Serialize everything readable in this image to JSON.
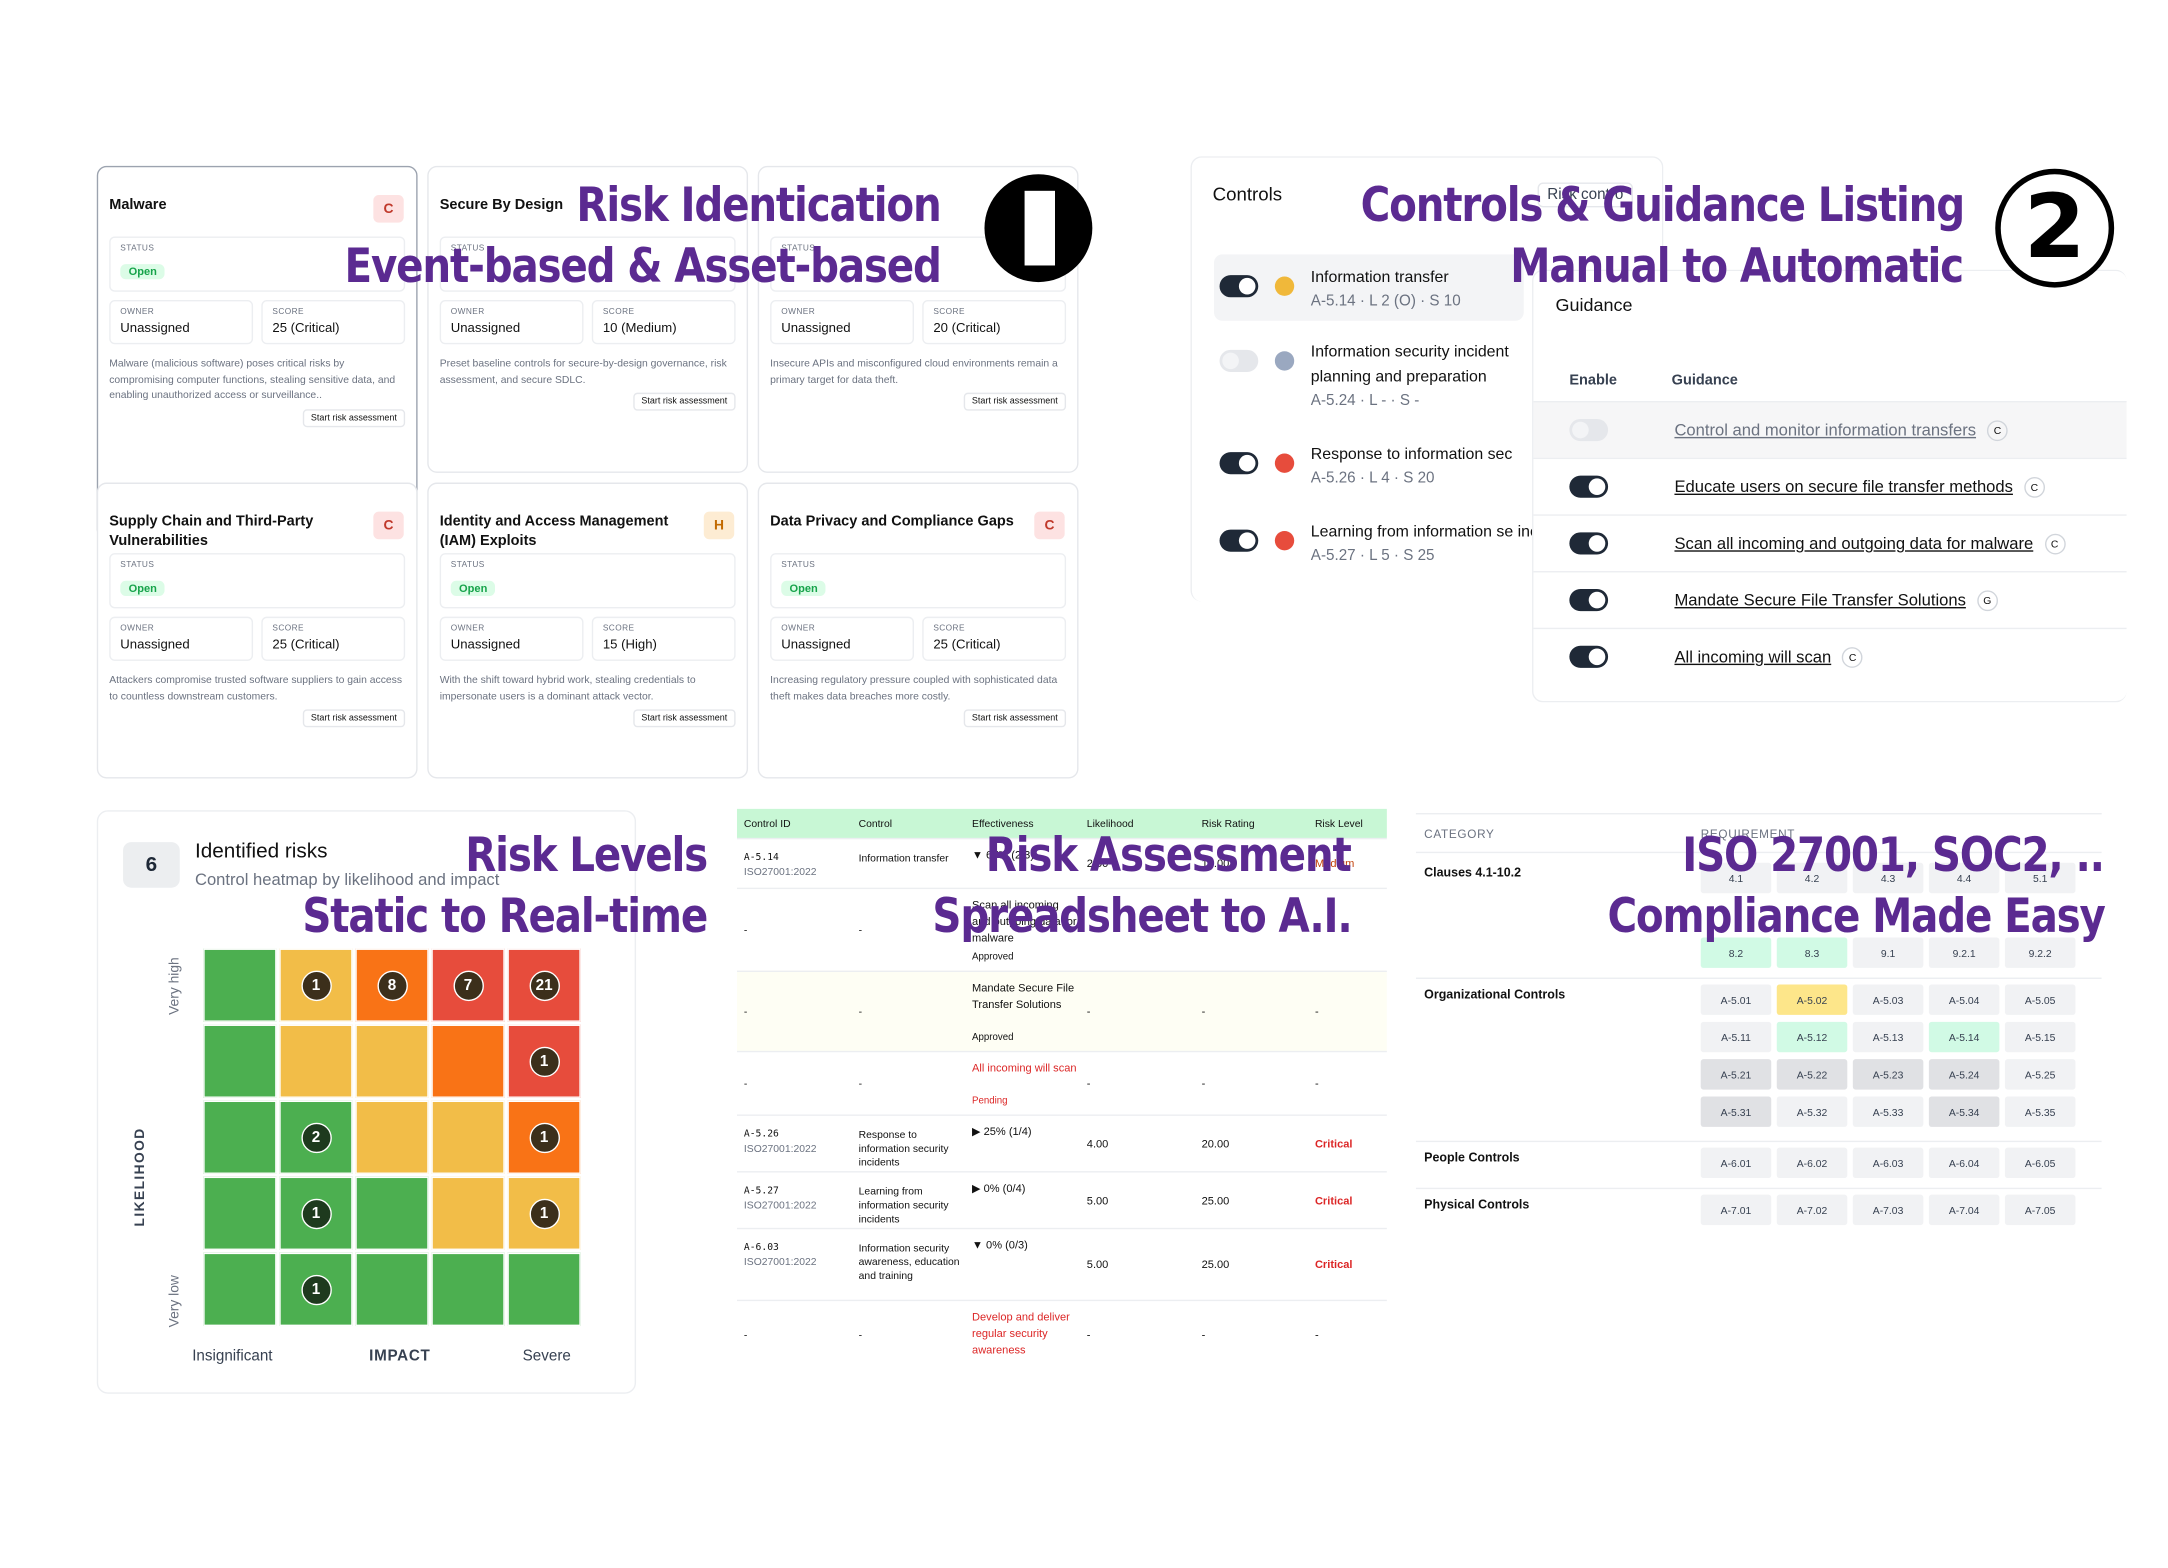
{
  "overlays": {
    "o1a": "Risk Identication",
    "o1b": "Event-based & Asset-based",
    "n1": "1",
    "o2a": "Controls & Guidance Listing",
    "o2b": "Manual to Automatic",
    "n2": "2",
    "o3a": "Risk Levels",
    "o3b": "Static to Real-time",
    "o4a": "Risk Assessment",
    "o4b": "Spreadsheet to A.I.",
    "o5a": "ISO 27001, SOC2, ..",
    "o5b": "Compliance Made Easy"
  },
  "cards": [
    {
      "title": "Malware",
      "badge": "C",
      "status": "Open",
      "owner": "Unassigned",
      "score": "25 (Critical)",
      "desc": "Malware (malicious software) poses critical risks by compromising computer functions, stealing sensitive data, and enabling unauthorized access or surveillance..",
      "btn": "Start risk assessment"
    },
    {
      "title": "Secure By Design",
      "badge": "",
      "status": "",
      "owner": "Unassigned",
      "score": "10 (Medium)",
      "desc": "Preset baseline controls for secure-by-design governance, risk assessment, and secure SDLC.",
      "btn": "Start risk assessment"
    },
    {
      "title": "",
      "badge": "",
      "status": "",
      "owner": "Unassigned",
      "score": "20 (Critical)",
      "desc": "Insecure APIs and misconfigured cloud environments remain a primary target for data theft.",
      "btn": "Start risk assessment"
    },
    {
      "title": "Supply Chain and Third-Party Vulnerabilities",
      "badge": "C",
      "status": "Open",
      "owner": "Unassigned",
      "score": "25 (Critical)",
      "desc": "Attackers compromise trusted software suppliers to gain access to countless downstream customers.",
      "btn": "Start risk assessment"
    },
    {
      "title": "Identity and Access Management (IAM) Exploits",
      "badge": "H",
      "status": "Open",
      "owner": "Unassigned",
      "score": "15 (High)",
      "desc": "With the shift toward hybrid work, stealing credentials to impersonate users is a dominant attack vector.",
      "btn": "Start risk assessment"
    },
    {
      "title": "Data Privacy and Compliance Gaps",
      "badge": "C",
      "status": "Open",
      "owner": "Unassigned",
      "score": "25 (Critical)",
      "desc": "Increasing regulatory pressure coupled with sophisticated data theft makes data breaches more costly.",
      "btn": "Start risk assessment"
    }
  ],
  "labels": {
    "status": "STATUS",
    "owner": "OWNER",
    "score": "SCORE"
  },
  "controls": {
    "title": "Controls",
    "risk_tab": "Risk contro",
    "items": [
      {
        "name": "Information transfer",
        "meta": "A-5.14 · L 2 (O) · S 10",
        "color": "#f0b83a",
        "on": true
      },
      {
        "name": "Information security incident planning and preparation",
        "meta": "A-5.24 · L - · S -",
        "color": "#9aa8c0",
        "on": false
      },
      {
        "name": "Response to information sec",
        "meta": "A-5.26 · L 4 · S 20",
        "color": "#e74c3c",
        "on": true
      },
      {
        "name": "Learning from information se incidents",
        "meta": "A-5.27 · L 5 · S 25",
        "color": "#e74c3c",
        "on": true
      }
    ]
  },
  "guidance": {
    "title": "Guidance",
    "col_enable": "Enable",
    "col_guidance": "Guidance",
    "items": [
      {
        "text": "Control and monitor information transfers",
        "tag": "C",
        "on": false
      },
      {
        "text": "Educate users on secure file transfer methods",
        "tag": "C",
        "on": true
      },
      {
        "text": "Scan all incoming and outgoing data for malware",
        "tag": "C",
        "on": true
      },
      {
        "text": "Mandate Secure File Transfer Solutions",
        "tag": "G",
        "on": true
      },
      {
        "text": "All incoming will scan",
        "tag": "C",
        "on": true
      }
    ]
  },
  "heatmap": {
    "count": "6",
    "title": "Identified risks",
    "subtitle": "Control heatmap by likelihood and impact",
    "y_axis": "LIKELIHOOD",
    "y_top": "Very high",
    "y_bottom": "Very low",
    "x_axis": "IMPACT",
    "x_left": "Insignificant",
    "x_right": "Severe",
    "colors": [
      [
        "#4caf50",
        "#f2bd48",
        "#f97316",
        "#e74c3c",
        "#e74c3c"
      ],
      [
        "#4caf50",
        "#f2bd48",
        "#f2bd48",
        "#f97316",
        "#e74c3c"
      ],
      [
        "#4caf50",
        "#4caf50",
        "#f2bd48",
        "#f2bd48",
        "#f97316"
      ],
      [
        "#4caf50",
        "#4caf50",
        "#4caf50",
        "#f2bd48",
        "#f2bd48"
      ],
      [
        "#4caf50",
        "#4caf50",
        "#4caf50",
        "#4caf50",
        "#4caf50"
      ]
    ],
    "counts": [
      [
        "",
        "1",
        "8",
        "7",
        "21"
      ],
      [
        "",
        "",
        "",
        "",
        "1"
      ],
      [
        "",
        "2",
        "",
        "",
        "1"
      ],
      [
        "",
        "1",
        "",
        "",
        "1"
      ],
      [
        "",
        "1",
        "",
        "",
        ""
      ]
    ]
  },
  "sheet": {
    "headers": [
      "Control ID",
      "Control",
      "Effectiveness",
      "Likelihood",
      "Risk Rating",
      "Risk Level"
    ],
    "rows": [
      {
        "id": "A-5.14",
        "std": "ISO27001:2022",
        "control": "Information transfer",
        "eff": "▼ 67% (2/3)",
        "lik": "2.00",
        "rating": "10.00",
        "level": "Medium",
        "h": 36
      },
      {
        "id": "-",
        "std": "",
        "control": "-",
        "eff": "Scan all incoming and outgoing data for malware",
        "status": "Approved",
        "lik": "",
        "rating": "",
        "level": "",
        "h": 60
      },
      {
        "id": "-",
        "std": "",
        "control": "-",
        "eff": "Mandate Secure File Transfer Solutions",
        "status": "Approved",
        "lik": "-",
        "rating": "-",
        "level": "-",
        "h": 58,
        "bg": "#fefef4"
      },
      {
        "id": "-",
        "std": "",
        "control": "-",
        "eff": "All incoming will scan",
        "status": "Pending",
        "lik": "-",
        "rating": "-",
        "level": "-",
        "h": 46,
        "red": true
      },
      {
        "id": "A-5.26",
        "std": "ISO27001:2022",
        "control": "Response to information security incidents",
        "eff": "▶ 25% (1/4)",
        "lik": "4.00",
        "rating": "20.00",
        "level": "Critical",
        "h": 41
      },
      {
        "id": "A-5.27",
        "std": "ISO27001:2022",
        "control": "Learning from information security incidents",
        "eff": "▶ 0% (0/4)",
        "lik": "5.00",
        "rating": "25.00",
        "level": "Critical",
        "h": 41
      },
      {
        "id": "A-6.03",
        "std": "ISO27001:2022",
        "control": "Information security awareness, education and training",
        "eff": "▼ 0% (0/3)",
        "lik": "5.00",
        "rating": "25.00",
        "level": "Critical",
        "h": 52
      },
      {
        "id": "-",
        "std": "",
        "control": "-",
        "eff": "Develop and deliver regular security awareness",
        "status": "",
        "lik": "-",
        "rating": "-",
        "level": "-",
        "h": 50,
        "red": true
      }
    ]
  },
  "compliance": {
    "col_category": "CATEGORY",
    "col_requirement": "REQUIREMENT",
    "categories": [
      {
        "name": "Clauses 4.1-10.2",
        "rows": [
          [
            "4.1",
            "4.2",
            "4.3",
            "4.4",
            "5.1"
          ],
          [
            "",
            "",
            "",
            "",
            ""
          ],
          [
            "8.2",
            "8.3",
            "9.1",
            "9.2.1",
            "9.2.2"
          ]
        ]
      },
      {
        "name": "Organizational Controls",
        "rows": [
          [
            "A-5.01",
            "A-5.02",
            "A-5.03",
            "A-5.04",
            "A-5.05"
          ],
          [
            "A-5.11",
            "A-5.12",
            "A-5.13",
            "A-5.14",
            "A-5.15"
          ],
          [
            "A-5.21",
            "A-5.22",
            "A-5.23",
            "A-5.24",
            "A-5.25"
          ],
          [
            "A-5.31",
            "A-5.32",
            "A-5.33",
            "A-5.34",
            "A-5.35"
          ]
        ]
      },
      {
        "name": "People Controls",
        "rows": [
          [
            "A-6.01",
            "A-6.02",
            "A-6.03",
            "A-6.04",
            "A-6.05"
          ]
        ]
      },
      {
        "name": "Physical Controls",
        "rows": [
          [
            "A-7.01",
            "A-7.02",
            "A-7.03",
            "A-7.04",
            "A-7.05"
          ]
        ]
      }
    ]
  }
}
